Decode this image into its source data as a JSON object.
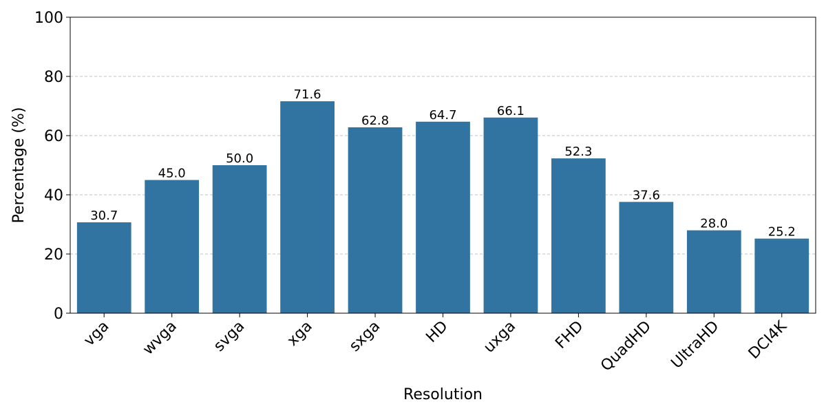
{
  "chart_data": {
    "type": "bar",
    "xlabel": "Resolution",
    "ylabel": "Percentage (%)",
    "categories": [
      "vga",
      "wvga",
      "svga",
      "xga",
      "sxga",
      "HD",
      "uxga",
      "FHD",
      "QuadHD",
      "UltraHD",
      "DCI4K"
    ],
    "values": [
      30.7,
      45.0,
      50.0,
      71.6,
      62.8,
      64.7,
      66.1,
      52.3,
      37.6,
      28.0,
      25.2
    ],
    "value_labels": [
      "30.7",
      "45.0",
      "50.0",
      "71.6",
      "62.8",
      "64.7",
      "66.1",
      "52.3",
      "37.6",
      "28.0",
      "25.2"
    ],
    "ylim": [
      0,
      100
    ],
    "yticks": [
      "0",
      "20",
      "40",
      "60",
      "80",
      "100"
    ],
    "grid": "y-dashed",
    "bar_color": "#3274a1"
  }
}
